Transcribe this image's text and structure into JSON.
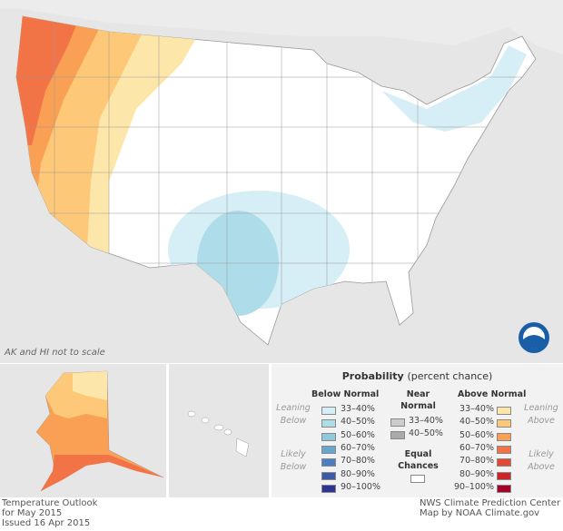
{
  "map": {
    "scale_note": "AK and HI not to scale",
    "logo": "NOAA"
  },
  "legend": {
    "title": "Probability",
    "title_sub": "(percent chance)",
    "below_header": "Below Normal",
    "near_header_1": "Near",
    "near_header_2": "Normal",
    "above_header": "Above Normal",
    "leaning_below": [
      "Leaning",
      "Below"
    ],
    "likely_below": [
      "Likely",
      "Below"
    ],
    "leaning_above": [
      "Leaning",
      "Above"
    ],
    "likely_above": [
      "Likely",
      "Above"
    ],
    "below": [
      {
        "label": "33–40%",
        "color": "#d6eef6"
      },
      {
        "label": "40–50%",
        "color": "#afdce9"
      },
      {
        "label": "50–60%",
        "color": "#8fc8df"
      },
      {
        "label": "60–70%",
        "color": "#66a6cf"
      },
      {
        "label": "70–80%",
        "color": "#4a80c2"
      },
      {
        "label": "80–90%",
        "color": "#3d5aa8"
      },
      {
        "label": "90–100%",
        "color": "#2e3492"
      }
    ],
    "near": [
      {
        "label": "33–40%",
        "color": "#cccccc"
      },
      {
        "label": "40–50%",
        "color": "#aaaaaa"
      }
    ],
    "equal_1": "Equal",
    "equal_2": "Chances",
    "above": [
      {
        "label": "33–40%",
        "color": "#fde6a9"
      },
      {
        "label": "40–50%",
        "color": "#fdc878"
      },
      {
        "label": "50–60%",
        "color": "#f9a055"
      },
      {
        "label": "60–70%",
        "color": "#f27345"
      },
      {
        "label": "70–80%",
        "color": "#e24a33"
      },
      {
        "label": "80–90%",
        "color": "#cc2427"
      },
      {
        "label": "90–100%",
        "color": "#a50026"
      }
    ]
  },
  "footer": {
    "left": [
      "Temperature Outlook",
      "for May 2015",
      "Issued 16 Apr 2015"
    ],
    "right": [
      "NWS Climate Prediction Center",
      "Map by NOAA Climate.gov"
    ]
  }
}
